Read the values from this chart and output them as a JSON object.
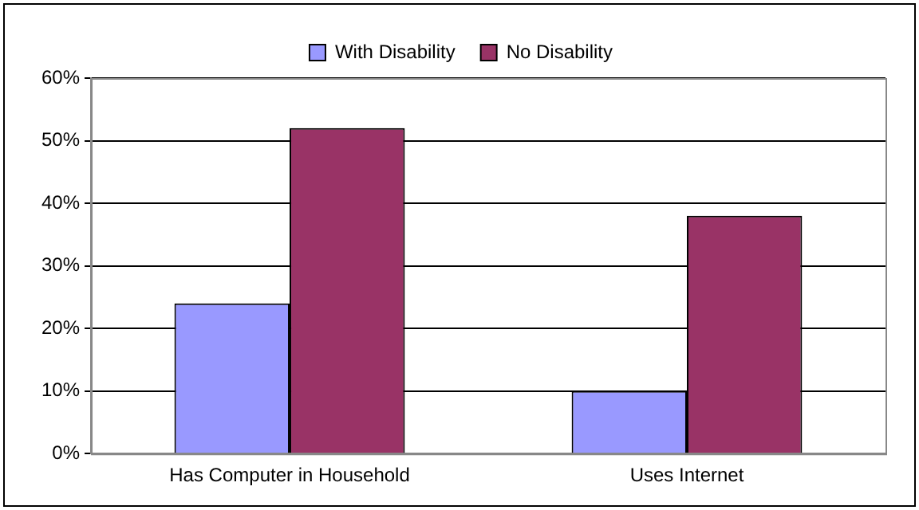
{
  "chart_data": {
    "type": "bar",
    "categories": [
      "Has Computer in Household",
      "Uses Internet"
    ],
    "series": [
      {
        "name": "With Disability",
        "color": "#9999ff",
        "values": [
          24,
          10
        ]
      },
      {
        "name": "No Disability",
        "color": "#993366",
        "values": [
          52,
          38
        ]
      }
    ],
    "ylim": [
      0,
      60
    ],
    "yticks": [
      {
        "value": 0,
        "label": "0%"
      },
      {
        "value": 10,
        "label": "10%"
      },
      {
        "value": 20,
        "label": "20%"
      },
      {
        "value": 30,
        "label": "30%"
      },
      {
        "value": 40,
        "label": "40%"
      },
      {
        "value": 50,
        "label": "50%"
      },
      {
        "value": 60,
        "label": "60%"
      }
    ],
    "grid": "y",
    "legend": "top"
  }
}
